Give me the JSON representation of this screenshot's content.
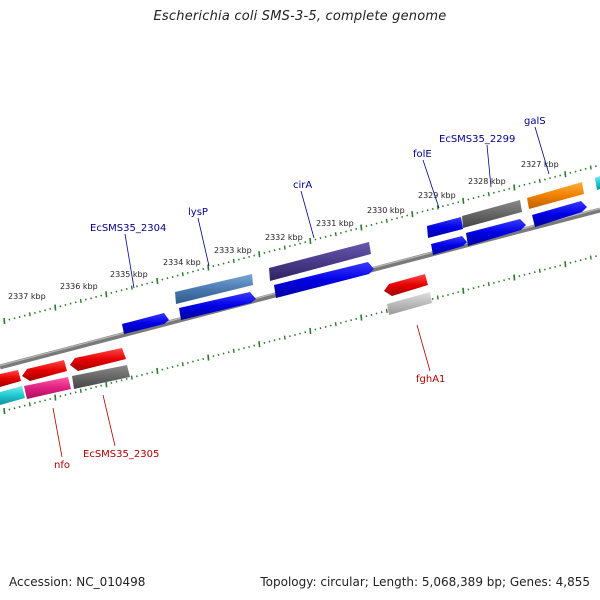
{
  "title": "Escherichia coli SMS-3-5, complete genome",
  "footer": {
    "accession": "Accession: NC_010498",
    "summary": "Topology: circular; Length: 5,068,389 bp; Genes: 4,855"
  },
  "tick_labels": [
    "2327 kbp",
    "2328 kbp",
    "2329 kbp",
    "2330 kbp",
    "2331 kbp",
    "2332 kbp",
    "2333 kbp",
    "2334 kbp",
    "2335 kbp",
    "2336 kbp",
    "2337 kbp"
  ],
  "gene_labels": {
    "galS": "galS",
    "ecsms35_2299": "EcSMS35_2299",
    "folE": "folE",
    "cirA": "cirA",
    "lysP": "lysP",
    "ecsms35_2304": "EcSMS35_2304",
    "fghA1": "fghA1",
    "nfo": "nfo",
    "ecsms35_2305": "EcSMS35_2305"
  },
  "colors": {
    "forward_label": "#00008b",
    "reverse_label": "#b00000",
    "backbone": "#808080",
    "tick": "#2a7a2a",
    "cds_blue": "#0000e0",
    "cds_red": "#e00000",
    "rna_gray": "#6a6a6a",
    "lysP_steel": "#4a7ab0",
    "cirA_purple": "#4a3a8a",
    "galS_orange": "#f08000",
    "pink": "#e02080",
    "cyan": "#20c8d0"
  }
}
